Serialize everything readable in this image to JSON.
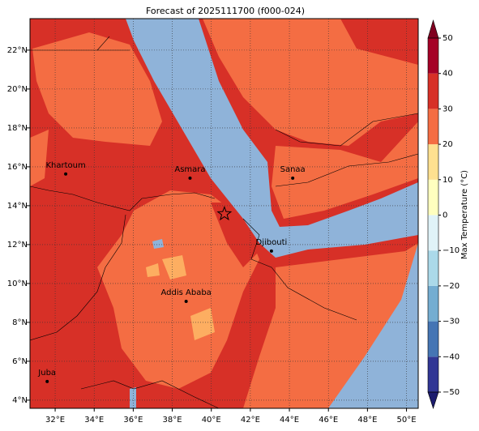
{
  "title": "Forecast of 2025111700 (f000-024)",
  "map": {
    "xlim": [
      30.71,
      50.6
    ],
    "ylim": [
      3.58,
      23.62
    ],
    "xticks": [
      {
        "value": 32,
        "label": "32°E"
      },
      {
        "value": 34,
        "label": "34°E"
      },
      {
        "value": 36,
        "label": "36°E"
      },
      {
        "value": 38,
        "label": "38°E"
      },
      {
        "value": 40,
        "label": "40°E"
      },
      {
        "value": 42,
        "label": "42°E"
      },
      {
        "value": 44,
        "label": "44°E"
      },
      {
        "value": 46,
        "label": "46°E"
      },
      {
        "value": 48,
        "label": "48°E"
      },
      {
        "value": 50,
        "label": "50°E"
      }
    ],
    "yticks": [
      {
        "value": 4,
        "label": "4°N"
      },
      {
        "value": 6,
        "label": "6°N"
      },
      {
        "value": 8,
        "label": "8°N"
      },
      {
        "value": 10,
        "label": "10°N"
      },
      {
        "value": 12,
        "label": "12°N"
      },
      {
        "value": 14,
        "label": "14°N"
      },
      {
        "value": 16,
        "label": "16°N"
      },
      {
        "value": 18,
        "label": "18°N"
      },
      {
        "value": 20,
        "label": "20°N"
      },
      {
        "value": 22,
        "label": "22°N"
      }
    ],
    "cities": [
      {
        "name": "Khartoum",
        "lon": 32.54,
        "lat": 15.63
      },
      {
        "name": "Asmara",
        "lon": 38.91,
        "lat": 15.42
      },
      {
        "name": "Sanaa",
        "lon": 44.17,
        "lat": 15.42
      },
      {
        "name": "Djibouti",
        "lon": 43.08,
        "lat": 11.67
      },
      {
        "name": "Addis Ababa",
        "lon": 38.71,
        "lat": 9.08
      },
      {
        "name": "Juba",
        "lon": 31.59,
        "lat": 4.96
      }
    ],
    "marker": {
      "lon": 40.67,
      "lat": 13.58
    }
  },
  "colorbar": {
    "label": "Max Temperature (°C)",
    "lim": [
      -50,
      50
    ],
    "ticks": [
      {
        "value": -50,
        "label": "−50"
      },
      {
        "value": -40,
        "label": "−40"
      },
      {
        "value": -30,
        "label": "−30"
      },
      {
        "value": -20,
        "label": "−20"
      },
      {
        "value": -10,
        "label": "−10"
      },
      0,
      10,
      20,
      30,
      40,
      50
    ],
    "colors": [
      "#313695",
      "#4575b4",
      "#74add1",
      "#abd9e9",
      "#e0f3f8",
      "#ffffbf",
      "#fee090",
      "#f46d43",
      "#d73027",
      "#a50026"
    ],
    "under_color": "#1c1c6e",
    "over_color": "#800020"
  }
}
